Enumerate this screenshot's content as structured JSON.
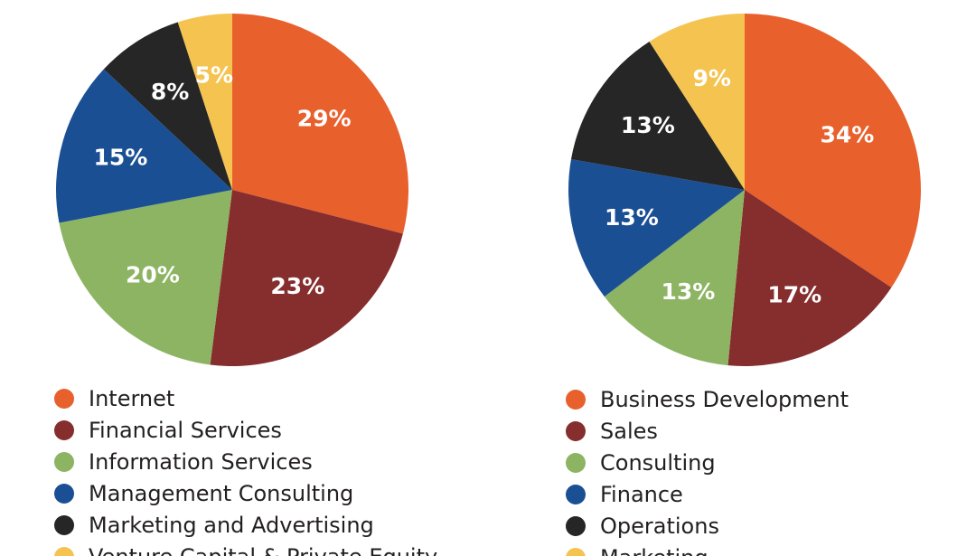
{
  "colors": [
    "#e8602c",
    "#862d2e",
    "#8db462",
    "#1b4f94",
    "#262626",
    "#f5c450"
  ],
  "chart_data": [
    {
      "type": "pie",
      "title": "",
      "categories": [
        "Internet",
        "Financial Services",
        "Information Services",
        "Management Consulting",
        "Marketing and Advertising",
        "Venture Capital & Private Equity"
      ],
      "values": [
        29,
        23,
        20,
        15,
        8,
        5
      ],
      "labels": [
        "29%",
        "23%",
        "20%",
        "15%",
        "8%",
        "5%"
      ],
      "legend_position": "bottom"
    },
    {
      "type": "pie",
      "title": "",
      "categories": [
        "Business Development",
        "Sales",
        "Consulting",
        "Finance",
        "Operations",
        "Marketing"
      ],
      "values": [
        34,
        17,
        13,
        13,
        13,
        9
      ],
      "labels": [
        "34%",
        "17%",
        "13%",
        "13%",
        "13%",
        "9%"
      ],
      "legend_position": "bottom"
    }
  ]
}
